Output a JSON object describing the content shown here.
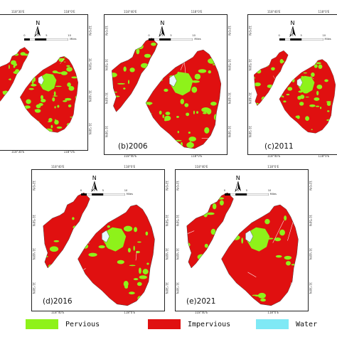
{
  "classes": [
    {
      "label": "Pervious",
      "color": "#8ef21a"
    },
    {
      "label": "Impervious",
      "color": "#e01010"
    },
    {
      "label": "Water",
      "color": "#7fe9f5"
    }
  ],
  "panels": [
    {
      "caption": "",
      "lon_ticks": [
        "118°30'E",
        "118°0'E"
      ],
      "lat_ticks": [
        "32°0'N",
        "31°50'N",
        "31°40'N",
        "31°30'N"
      ],
      "bottom_ticks": [
        "118°30'E",
        "118°0'E"
      ],
      "pervious_share": 0.6
    },
    {
      "caption": "(b)2006",
      "lon_ticks": [
        "118°40'E",
        "118°0'E"
      ],
      "lat_ticks": [
        "32°0'N",
        "31°50'N",
        "31°40'N",
        "31°30'N"
      ],
      "bottom_ticks": [
        "118°40'E",
        "118°0'E"
      ],
      "pervious_share": 0.4
    },
    {
      "caption": "(c)2011",
      "lon_ticks": [
        "118°40'E",
        "118°0'E"
      ],
      "lat_ticks": [
        "32°0'N",
        "31°50'N",
        "31°40'N",
        "31°30'N"
      ],
      "bottom_ticks": [
        "118°40'E",
        "118°0'E"
      ],
      "pervious_share": 0.32
    },
    {
      "caption": "(d)2016",
      "lon_ticks": [
        "118°40'E",
        "118°0'E"
      ],
      "lat_ticks": [
        "32°0'N",
        "31°50'N",
        "31°40'N",
        "31°30'N"
      ],
      "bottom_ticks": [
        "118°40'E",
        "118°0'E"
      ],
      "pervious_share": 0.28
    },
    {
      "caption": "(e)2021",
      "lon_ticks": [
        "118°40'E",
        "118°0'E"
      ],
      "lat_ticks": [
        "32°0'N",
        "31°50'N",
        "31°40'N",
        "31°30'N"
      ],
      "bottom_ticks": [
        "118°40'E",
        "118°0'E"
      ],
      "pervious_share": 0.22
    }
  ],
  "north_arrow": {
    "label": "N"
  },
  "scale_bar": {
    "ticks": [
      "0",
      "2.5",
      "5",
      "10"
    ],
    "unit": "Miles"
  }
}
